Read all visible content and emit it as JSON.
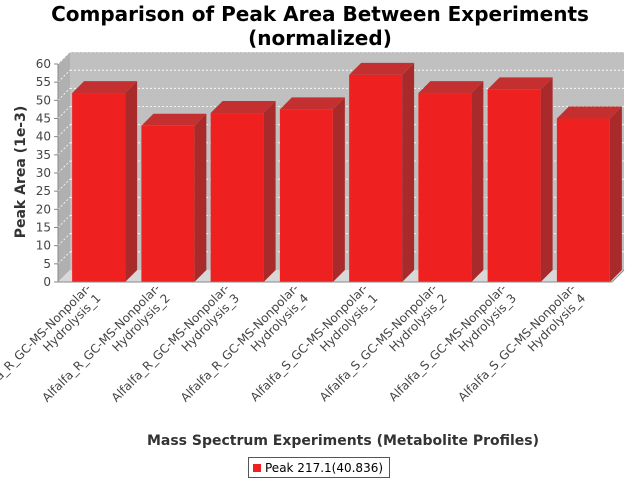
{
  "chart_data": {
    "type": "bar",
    "title_line1": "Comparison of Peak Area Between Experiments",
    "title_line2": "(normalized)",
    "xlabel": "Mass Spectrum Experiments (Metabolite Profiles)",
    "ylabel": "Peak Area (1e-3)",
    "ylim": [
      0,
      60
    ],
    "yticks": [
      0,
      5,
      10,
      15,
      20,
      25,
      30,
      35,
      40,
      45,
      50,
      55,
      60
    ],
    "grid": true,
    "legend_position": "bottom-center",
    "categories": [
      [
        "Alfalfa_R_GC-MS-Nonpolar-",
        "Hydrolysis_1"
      ],
      [
        "Alfalfa_R_GC-MS-Nonpolar-",
        "Hydrolysis_2"
      ],
      [
        "Alfalfa_R_GC-MS-Nonpolar-",
        "Hydrolysis_3"
      ],
      [
        "Alfalfa_R_GC-MS-Nonpolar-",
        "Hydrolysis_4"
      ],
      [
        "Alfalfa_S_GC-MS-Nonpolar-",
        "Hydrolysis_1"
      ],
      [
        "Alfalfa_S_GC-MS-Nonpolar-",
        "Hydrolysis_2"
      ],
      [
        "Alfalfa_S_GC-MS-Nonpolar-",
        "Hydrolysis_3"
      ],
      [
        "Alfalfa_S_GC-MS-Nonpolar-",
        "Hydrolysis_4"
      ]
    ],
    "series": [
      {
        "name": "Peak 217.1(40.836)",
        "color": "#ee2020",
        "values": [
          52,
          43,
          46.5,
          47.5,
          57,
          52,
          53,
          45
        ]
      }
    ]
  }
}
